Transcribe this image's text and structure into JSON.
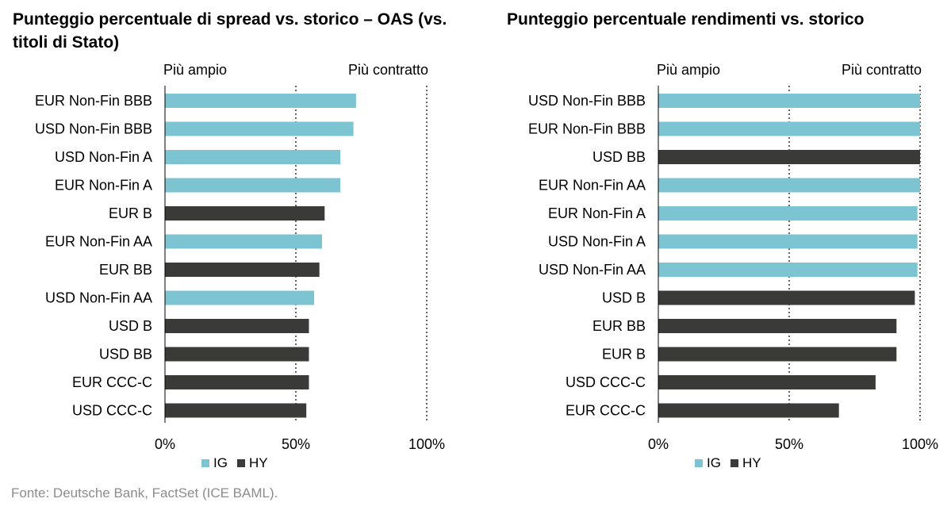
{
  "colors": {
    "IG": "#7dc4d2",
    "HY": "#3a3a39",
    "grid": "#000000"
  },
  "legend": {
    "ig_label": "IG",
    "hy_label": "HY"
  },
  "source": "Fonte: Deutsche Bank, FactSet (ICE BAML).",
  "chart_data": [
    {
      "type": "bar",
      "orientation": "horizontal",
      "title": "Punteggio percentuale di spread vs. storico – OAS (vs. titoli di Stato)",
      "annotations": {
        "left": "Più ampio",
        "right": "Più contratto"
      },
      "xlim": [
        0,
        100
      ],
      "xticks": [
        "0%",
        "50%",
        "100%"
      ],
      "gridlines": "dotted at 50% and 100%",
      "legend_position": "bottom",
      "categories": [
        "EUR Non-Fin BBB",
        "USD Non-Fin BBB",
        "USD Non-Fin A",
        "EUR Non-Fin A",
        "EUR B",
        "EUR Non-Fin AA",
        "EUR BB",
        "USD Non-Fin AA",
        "USD B",
        "USD BB",
        "EUR CCC-C",
        "USD CCC-C"
      ],
      "groups": [
        "IG",
        "IG",
        "IG",
        "IG",
        "HY",
        "IG",
        "HY",
        "IG",
        "HY",
        "HY",
        "HY",
        "HY"
      ],
      "values": [
        73,
        72,
        67,
        67,
        61,
        60,
        59,
        57,
        55,
        55,
        55,
        54
      ]
    },
    {
      "type": "bar",
      "orientation": "horizontal",
      "title": "Punteggio percentuale rendimenti vs. storico",
      "annotations": {
        "left": "Più ampio",
        "right": "Più contratto"
      },
      "xlim": [
        0,
        100
      ],
      "xticks": [
        "0%",
        "50%",
        "100%"
      ],
      "gridlines": "dotted at 50% and 100%",
      "legend_position": "bottom",
      "categories": [
        "USD Non-Fin BBB",
        "EUR Non-Fin BBB",
        "USD BB",
        "EUR Non-Fin AA",
        "EUR Non-Fin A",
        "USD Non-Fin A",
        "USD Non-Fin AA",
        "USD B",
        "EUR BB",
        "EUR B",
        "USD CCC-C",
        "EUR CCC-C"
      ],
      "groups": [
        "IG",
        "IG",
        "HY",
        "IG",
        "IG",
        "IG",
        "IG",
        "HY",
        "HY",
        "HY",
        "HY",
        "HY"
      ],
      "values": [
        100,
        100,
        100,
        100,
        99,
        99,
        99,
        98,
        91,
        91,
        83,
        69
      ]
    }
  ]
}
